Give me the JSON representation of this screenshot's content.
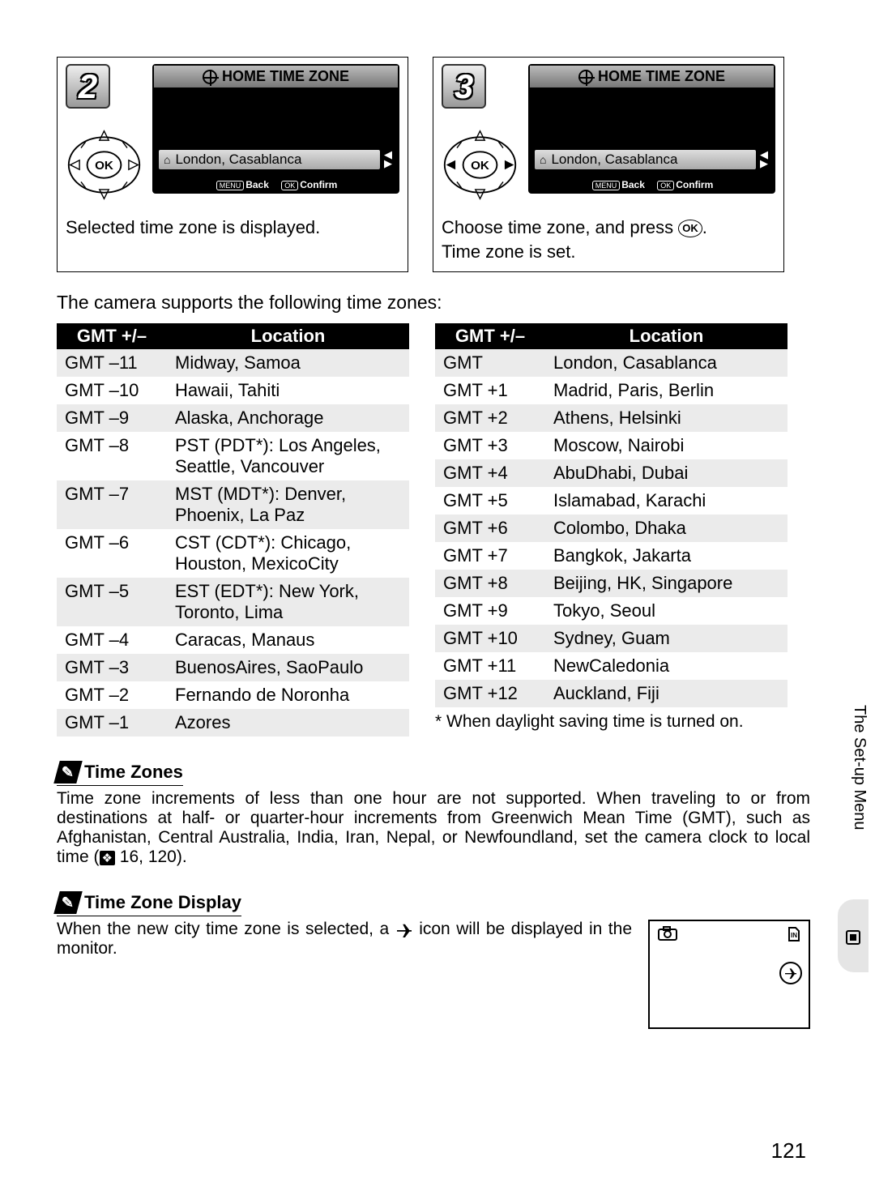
{
  "side_tab": {
    "label": "The Set-up Menu"
  },
  "steps": [
    {
      "num": "2",
      "screen_title": "HOME TIME ZONE",
      "screen_location": "London, Casablanca",
      "footer_back": "Back",
      "footer_menu": "MENU",
      "footer_ok": "OK",
      "footer_confirm": "Confirm",
      "caption": "Selected time zone is displayed."
    },
    {
      "num": "3",
      "screen_title": "HOME TIME ZONE",
      "screen_location": "London, Casablanca",
      "footer_back": "Back",
      "footer_menu": "MENU",
      "footer_ok": "OK",
      "footer_confirm": "Confirm",
      "caption_a": "Choose time zone, and press ",
      "caption_b": ".",
      "caption_c": "Time zone is set.",
      "ok_label": "OK"
    }
  ],
  "intro": "The camera supports the following time zones:",
  "table": {
    "head_gmt": "GMT +/–",
    "head_loc": "Location",
    "left": [
      {
        "gmt": "GMT –11",
        "loc": "Midway, Samoa"
      },
      {
        "gmt": "GMT –10",
        "loc": "Hawaii, Tahiti"
      },
      {
        "gmt": "GMT –9",
        "loc": "Alaska, Anchorage"
      },
      {
        "gmt": "GMT –8",
        "loc": "PST (PDT*): Los Angeles, Seattle, Vancouver"
      },
      {
        "gmt": "GMT –7",
        "loc": "MST (MDT*): Denver, Phoenix, La Paz"
      },
      {
        "gmt": "GMT –6",
        "loc": "CST (CDT*): Chicago, Houston, MexicoCity"
      },
      {
        "gmt": "GMT –5",
        "loc": "EST (EDT*): New York, Toronto, Lima"
      },
      {
        "gmt": "GMT –4",
        "loc": "Caracas, Manaus"
      },
      {
        "gmt": "GMT –3",
        "loc": "BuenosAires, SaoPaulo"
      },
      {
        "gmt": "GMT –2",
        "loc": "Fernando de Noronha"
      },
      {
        "gmt": "GMT –1",
        "loc": "Azores"
      }
    ],
    "right": [
      {
        "gmt": "GMT",
        "loc": "London, Casablanca"
      },
      {
        "gmt": "GMT +1",
        "loc": "Madrid, Paris, Berlin"
      },
      {
        "gmt": "GMT +2",
        "loc": "Athens, Helsinki"
      },
      {
        "gmt": "GMT +3",
        "loc": "Moscow, Nairobi"
      },
      {
        "gmt": "GMT +4",
        "loc": "AbuDhabi, Dubai"
      },
      {
        "gmt": "GMT +5",
        "loc": "Islamabad, Karachi"
      },
      {
        "gmt": "GMT +6",
        "loc": "Colombo, Dhaka"
      },
      {
        "gmt": "GMT +7",
        "loc": "Bangkok, Jakarta"
      },
      {
        "gmt": "GMT +8",
        "loc": "Beijing, HK, Singapore"
      },
      {
        "gmt": "GMT +9",
        "loc": "Tokyo, Seoul"
      },
      {
        "gmt": "GMT +10",
        "loc": "Sydney, Guam"
      },
      {
        "gmt": "GMT +11",
        "loc": "NewCaledonia"
      },
      {
        "gmt": "GMT +12",
        "loc": "Auckland, Fiji"
      }
    ],
    "dst_note": "* When daylight saving time is turned on."
  },
  "note1": {
    "title": "Time Zones",
    "body_a": "Time zone increments of less than one hour are not supported. When traveling to or from destinations at half- or quarter-hour increments from Greenwich Mean Time (GMT), such as Afghanistan, Central Australia, India, Iran, Nepal, or Newfoundland, set the camera clock to local time (",
    "ref": "❖",
    "body_b": " 16, 120)."
  },
  "note2": {
    "title": "Time Zone Display",
    "body_a": "When the new city time zone is selected, a ",
    "body_b": " icon will be displayed in the monitor."
  },
  "pagenum": "121"
}
